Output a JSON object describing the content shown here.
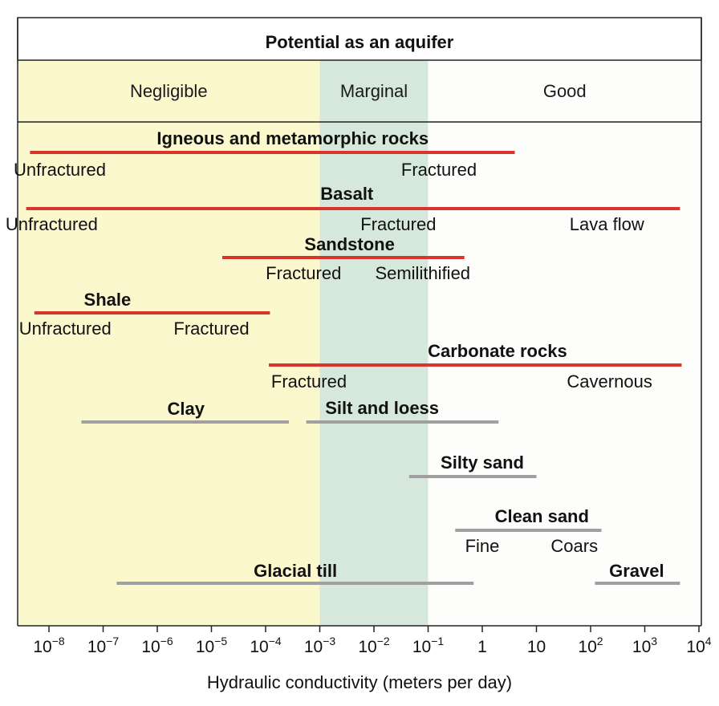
{
  "chart_data": {
    "type": "range",
    "header": "Potential as an aquifer",
    "zones": [
      {
        "label": "Negligible",
        "from_exp": -8.55,
        "to_exp": -3.0,
        "color": "#fcf8cd"
      },
      {
        "label": "Marginal",
        "from_exp": -3.0,
        "to_exp": -1.0,
        "color": "#d6e8dc"
      },
      {
        "label": "Good",
        "from_exp": -1.0,
        "to_exp": 4.0,
        "color": "#fdfdfb"
      }
    ],
    "xlabel": "Hydraulic conductivity (meters per day)",
    "xscale": "log",
    "xlim_exp": [
      -8.55,
      4.0
    ],
    "ticks": [
      {
        "exp": -8,
        "base": "10",
        "sup": "−8"
      },
      {
        "exp": -7,
        "base": "10",
        "sup": "−7"
      },
      {
        "exp": -6,
        "base": "10",
        "sup": "−6"
      },
      {
        "exp": -5,
        "base": "10",
        "sup": "−5"
      },
      {
        "exp": -4,
        "base": "10",
        "sup": "−4"
      },
      {
        "exp": -3,
        "base": "10",
        "sup": "−3"
      },
      {
        "exp": -2,
        "base": "10",
        "sup": "−2"
      },
      {
        "exp": -1,
        "base": "10",
        "sup": "−1"
      },
      {
        "exp": 0,
        "base": "1",
        "sup": ""
      },
      {
        "exp": 1,
        "base": "10",
        "sup": ""
      },
      {
        "exp": 2,
        "base": "10",
        "sup": "2"
      },
      {
        "exp": 3,
        "base": "10",
        "sup": "3"
      },
      {
        "exp": 4,
        "base": "10",
        "sup": "4"
      }
    ],
    "colors": {
      "rock": "#d9352c",
      "sediment": "#a0a0a0"
    },
    "materials": [
      {
        "name": "Igneous and metamorphic rocks",
        "kind": "rock",
        "from_exp": -8.35,
        "to_exp": 0.6,
        "name_at_exp": -3.5,
        "sublabels": [
          {
            "text": "Unfractured",
            "at_exp": -7.8
          },
          {
            "text": "Fractured",
            "at_exp": -0.8
          }
        ]
      },
      {
        "name": "Basalt",
        "kind": "rock",
        "from_exp": -8.42,
        "to_exp": 3.65,
        "name_at_exp": -2.5,
        "sublabels": [
          {
            "text": "Unfractured",
            "at_exp": -7.95
          },
          {
            "text": "Fractured",
            "at_exp": -1.55
          },
          {
            "text": "Lava flow",
            "at_exp": 2.3
          }
        ]
      },
      {
        "name": "Sandstone",
        "kind": "rock",
        "from_exp": -4.8,
        "to_exp": -0.33,
        "name_at_exp": -2.45,
        "sublabels": [
          {
            "text": "Fractured",
            "at_exp": -3.3
          },
          {
            "text": "Semilithified",
            "at_exp": -1.1
          }
        ]
      },
      {
        "name": "Shale",
        "kind": "rock",
        "from_exp": -8.27,
        "to_exp": -3.92,
        "name_at_exp": -6.92,
        "sublabels": [
          {
            "text": "Unfractured",
            "at_exp": -7.7
          },
          {
            "text": "Fractured",
            "at_exp": -5.0
          }
        ]
      },
      {
        "name": "Carbonate rocks",
        "kind": "rock",
        "from_exp": -3.94,
        "to_exp": 3.68,
        "name_at_exp": 0.28,
        "sublabels": [
          {
            "text": "Fractured",
            "at_exp": -3.2
          },
          {
            "text": "Cavernous",
            "at_exp": 2.35
          }
        ]
      },
      {
        "name": "Clay",
        "kind": "sediment",
        "from_exp": -7.4,
        "to_exp": -3.57,
        "name_at_exp": -5.47,
        "sublabels": []
      },
      {
        "name": "Silt and loess",
        "kind": "sediment",
        "from_exp": -3.25,
        "to_exp": 0.3,
        "name_at_exp": -1.85,
        "sublabels": []
      },
      {
        "name": "Silty sand",
        "kind": "sediment",
        "from_exp": -1.35,
        "to_exp": 1.0,
        "name_at_exp": 0.0,
        "sublabels": []
      },
      {
        "name": "Clean sand",
        "kind": "sediment",
        "from_exp": -0.5,
        "to_exp": 2.2,
        "name_at_exp": 1.1,
        "sublabels": [
          {
            "text": "Fine",
            "at_exp": 0.0
          },
          {
            "text": "Coars",
            "at_exp": 1.7
          }
        ]
      },
      {
        "name": "Glacial till",
        "kind": "sediment",
        "from_exp": -6.75,
        "to_exp": -0.16,
        "name_at_exp": -3.45,
        "sublabels": []
      },
      {
        "name": "Gravel",
        "kind": "sediment",
        "from_exp": 2.08,
        "to_exp": 3.65,
        "name_at_exp": 2.85,
        "sublabels": []
      }
    ]
  }
}
